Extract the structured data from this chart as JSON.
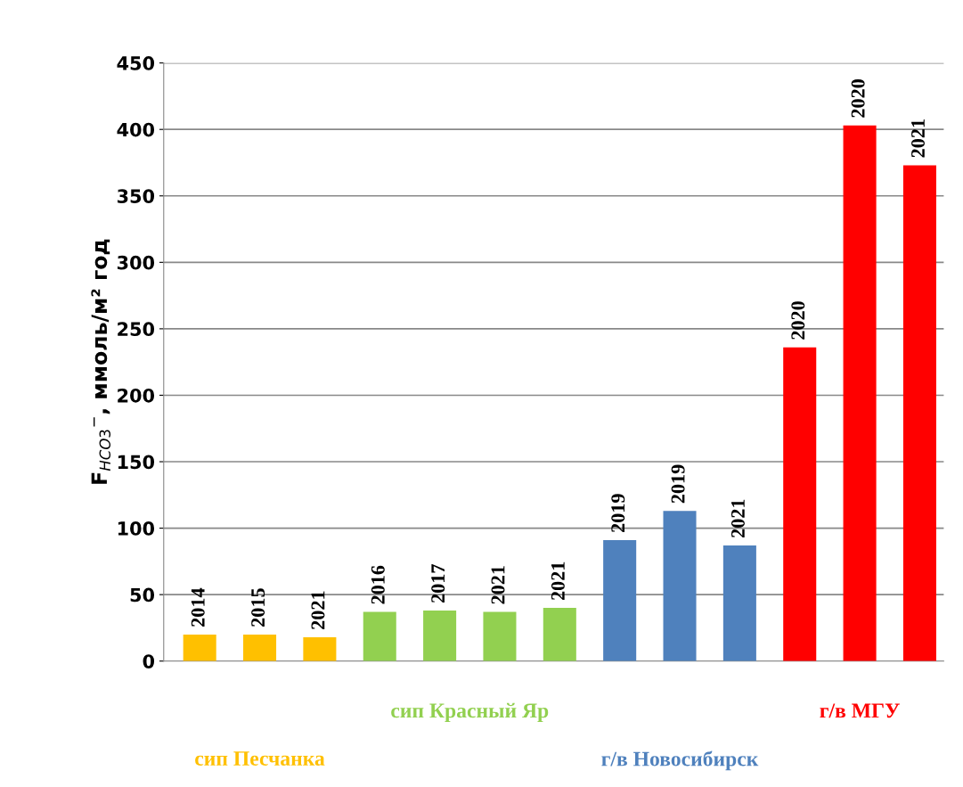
{
  "chart_data": {
    "type": "bar",
    "ylabel": "F$_{HCO3}$$^{−}$, ммоль/м² год",
    "categories": [
      "2014",
      "2015",
      "2021",
      "2016",
      "2017",
      "2021",
      "2021",
      "2019",
      "2019",
      "2021",
      "2020",
      "2020",
      "2021"
    ],
    "series": [
      {
        "name": "сип Песчанка",
        "color": "#ffc000",
        "values": [
          20,
          20,
          18,
          null,
          null,
          null,
          null,
          null,
          null,
          null,
          null,
          null,
          null
        ]
      },
      {
        "name": "сип Красный Яр",
        "color": "#92d050",
        "values": [
          null,
          null,
          null,
          37,
          38,
          37,
          40,
          null,
          null,
          null,
          null,
          null,
          null
        ]
      },
      {
        "name": "г/в Новосибирск",
        "color": "#4f81bd",
        "values": [
          null,
          null,
          null,
          null,
          null,
          null,
          null,
          91,
          113,
          87,
          null,
          null,
          null
        ]
      },
      {
        "name": "г/в МГУ",
        "color": "#ff0000",
        "values": [
          null,
          null,
          null,
          null,
          null,
          null,
          null,
          null,
          null,
          null,
          236,
          403,
          373
        ]
      }
    ],
    "ylim": [
      0,
      450
    ],
    "yticks": [
      0,
      50,
      100,
      150,
      200,
      250,
      300,
      350,
      400,
      450
    ],
    "grid": "y"
  }
}
